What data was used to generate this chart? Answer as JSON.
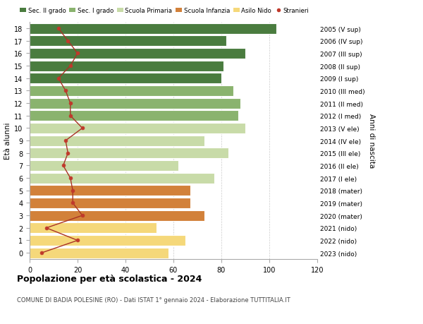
{
  "ages": [
    0,
    1,
    2,
    3,
    4,
    5,
    6,
    7,
    8,
    9,
    10,
    11,
    12,
    13,
    14,
    15,
    16,
    17,
    18
  ],
  "bar_values": [
    58,
    65,
    53,
    73,
    67,
    67,
    77,
    62,
    83,
    73,
    90,
    87,
    88,
    85,
    80,
    81,
    90,
    82,
    103
  ],
  "bar_colors": [
    "#f5d87a",
    "#f5d87a",
    "#f5d87a",
    "#d2813a",
    "#d2813a",
    "#d2813a",
    "#c8dba8",
    "#c8dba8",
    "#c8dba8",
    "#c8dba8",
    "#c8dba8",
    "#8ab36e",
    "#8ab36e",
    "#8ab36e",
    "#4a7c3f",
    "#4a7c3f",
    "#4a7c3f",
    "#4a7c3f",
    "#4a7c3f"
  ],
  "stranieri_values": [
    5,
    20,
    7,
    22,
    18,
    18,
    17,
    14,
    16,
    15,
    22,
    17,
    17,
    15,
    12,
    17,
    20,
    16,
    12
  ],
  "right_labels": [
    "2023 (nido)",
    "2022 (nido)",
    "2021 (nido)",
    "2020 (mater)",
    "2019 (mater)",
    "2018 (mater)",
    "2017 (I ele)",
    "2016 (II ele)",
    "2015 (III ele)",
    "2014 (IV ele)",
    "2013 (V ele)",
    "2012 (I med)",
    "2011 (II med)",
    "2010 (III med)",
    "2009 (I sup)",
    "2008 (II sup)",
    "2007 (III sup)",
    "2006 (IV sup)",
    "2005 (V sup)"
  ],
  "legend_labels": [
    "Sec. II grado",
    "Sec. I grado",
    "Scuola Primaria",
    "Scuola Infanzia",
    "Asilo Nido",
    "Stranieri"
  ],
  "legend_colors": [
    "#4a7c3f",
    "#8ab36e",
    "#c8dba8",
    "#d2813a",
    "#f5d87a",
    "#c0392b"
  ],
  "ylabel": "Età alunni",
  "right_ylabel": "Anni di nascita",
  "title": "Popolazione per età scolastica - 2024",
  "subtitle": "COMUNE DI BADIA POLESINE (RO) - Dati ISTAT 1° gennaio 2024 - Elaborazione TUTTITALIA.IT",
  "xlim": [
    0,
    120
  ],
  "xticks": [
    0,
    20,
    40,
    60,
    80,
    100,
    120
  ],
  "background_color": "#ffffff",
  "grid_color": "#cccccc",
  "stranieri_color": "#c0392b",
  "stranieri_line_color": "#a93226"
}
